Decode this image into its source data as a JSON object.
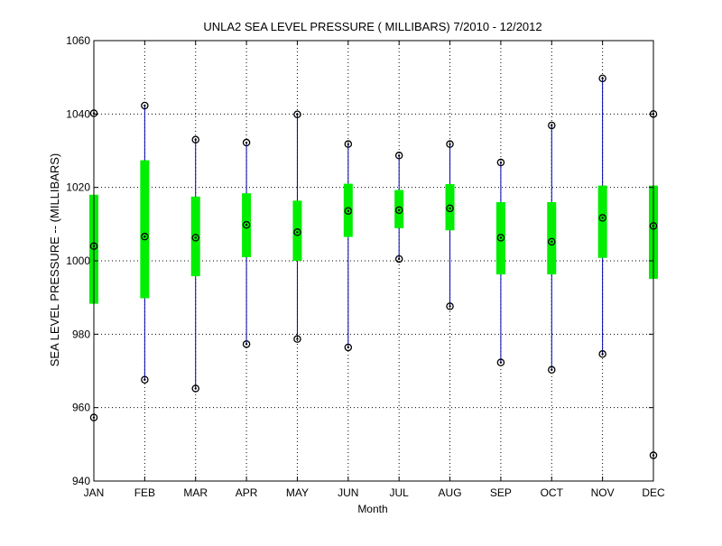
{
  "chart_data": {
    "type": "boxplot",
    "title": "UNLA2  SEA LEVEL PRESSURE ( MILLIBARS) 7/2010 - 12/2012",
    "xlabel": "Month",
    "ylabel": "SEA LEVEL PRESSURE -- (MILLIBARS)",
    "ylim": [
      940,
      1060
    ],
    "yticks": [
      940,
      960,
      980,
      1000,
      1020,
      1040,
      1060
    ],
    "grid": true,
    "categories": [
      "JAN",
      "FEB",
      "MAR",
      "APR",
      "MAY",
      "JUN",
      "JUL",
      "AUG",
      "SEP",
      "OCT",
      "NOV",
      "DEC"
    ],
    "series": [
      {
        "min": [
          957.3,
          967.6,
          965.2,
          977.3,
          978.7,
          976.4,
          1000.5,
          987.6,
          972.3,
          970.3,
          974.6,
          947.0
        ],
        "q1": [
          988.3,
          989.8,
          995.8,
          1001.0,
          1000.0,
          1006.5,
          1008.9,
          1008.3,
          996.3,
          996.3,
          1000.8,
          995.1
        ],
        "median": [
          1004.0,
          1006.6,
          1006.3,
          1009.8,
          1007.8,
          1013.6,
          1013.8,
          1014.3,
          1006.3,
          1005.2,
          1011.7,
          1009.5
        ],
        "q3": [
          1018.0,
          1027.4,
          1017.5,
          1018.4,
          1016.4,
          1021.0,
          1019.3,
          1020.9,
          1016.0,
          1016.0,
          1020.5,
          1020.5
        ],
        "max": [
          1040.2,
          1042.3,
          1033.0,
          1032.2,
          1039.9,
          1031.8,
          1028.7,
          1031.8,
          1026.8,
          1036.9,
          1049.7,
          1040.0
        ]
      }
    ],
    "colors": {
      "whisker": "#0000aa",
      "box": "#00ee00",
      "marker": "#000000",
      "grid": "#000000"
    }
  }
}
